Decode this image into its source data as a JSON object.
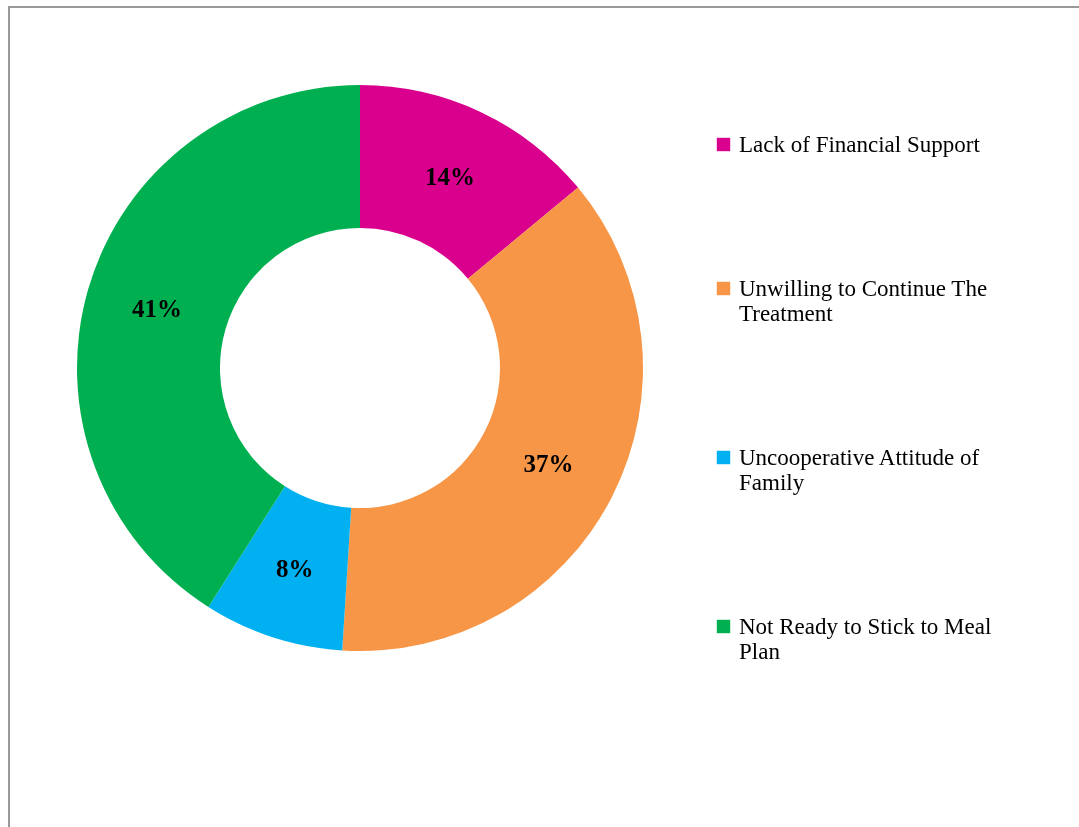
{
  "chart_data": {
    "type": "donut",
    "categories": [
      "Lack of Financial Support",
      "Unwilling to Continue The Treatment",
      "Uncooperative Attitude of Family",
      "Not Ready to Stick to Meal Plan"
    ],
    "values": [
      14,
      37,
      8,
      41
    ],
    "value_labels": [
      "14%",
      "37%",
      "8%",
      "41%"
    ],
    "colors": [
      "#d9008d",
      "#f79646",
      "#00b0f0",
      "#00b050"
    ],
    "legend": "right"
  }
}
